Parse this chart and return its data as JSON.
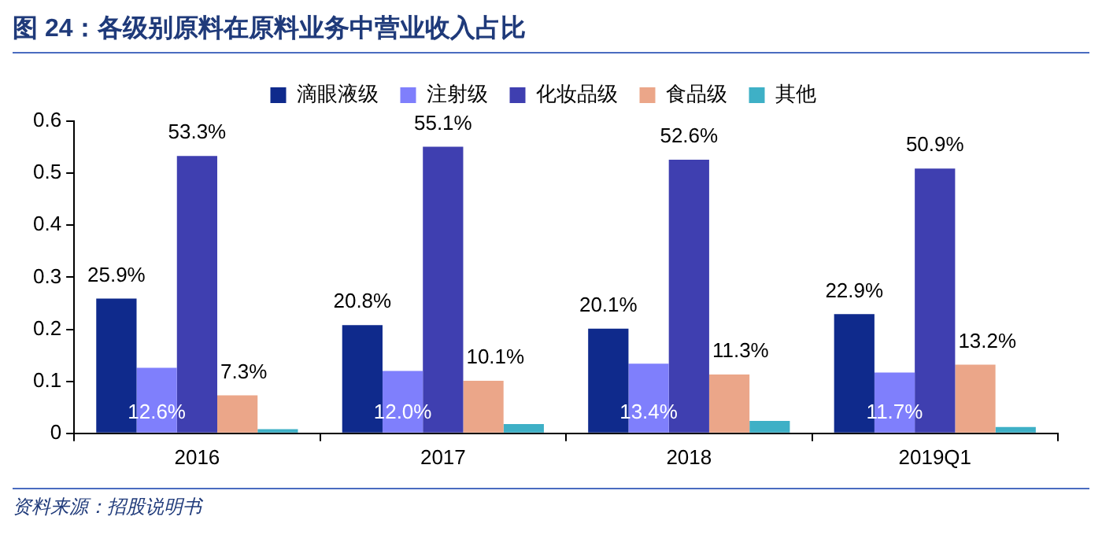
{
  "chart_data": {
    "type": "bar",
    "title": "图 24：各级别原料在原料业务中营业收入占比",
    "categories": [
      "2016",
      "2017",
      "2018",
      "2019Q1"
    ],
    "series": [
      {
        "name": "滴眼液级",
        "color": "#0f2a8c",
        "values": [
          0.259,
          0.208,
          0.201,
          0.229
        ],
        "value_labels": [
          "25.9%",
          "20.8%",
          "20.1%",
          "22.9%"
        ]
      },
      {
        "name": "注射级",
        "color": "#7f7ffc",
        "values": [
          0.126,
          0.12,
          0.134,
          0.117
        ],
        "value_labels": [
          "12.6%",
          "12.0%",
          "13.4%",
          "11.7%"
        ]
      },
      {
        "name": "化妆品级",
        "color": "#3f3fb0",
        "values": [
          0.533,
          0.551,
          0.526,
          0.509
        ],
        "value_labels": [
          "53.3%",
          "55.1%",
          "52.6%",
          "50.9%"
        ]
      },
      {
        "name": "食品级",
        "color": "#eba689",
        "values": [
          0.073,
          0.101,
          0.113,
          0.132
        ],
        "value_labels": [
          "7.3%",
          "10.1%",
          "11.3%",
          "13.2%"
        ]
      },
      {
        "name": "其他",
        "color": "#3eb0c6",
        "values": [
          0.008,
          0.018,
          0.024,
          0.012
        ]
      }
    ],
    "ylim": [
      0,
      0.6
    ],
    "yticks": [
      0,
      0.1,
      0.2,
      0.3,
      0.4,
      0.5,
      0.6
    ],
    "grid": false,
    "legend": "top",
    "annotations": [
      "资料来源：招股说明书"
    ]
  }
}
